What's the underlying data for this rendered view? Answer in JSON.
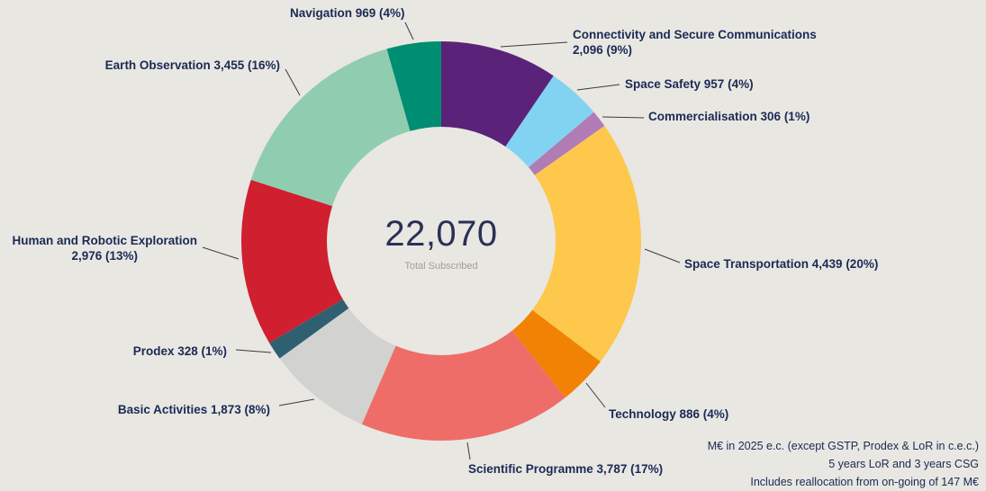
{
  "chart_data": {
    "type": "pie",
    "subtype": "donut",
    "title": "",
    "legend": "none",
    "center_value": "22,070",
    "center_label": "Total Subscribed",
    "total": 22070,
    "start_at_top_clockwise": true,
    "slices": [
      {
        "id": "connectivity",
        "name": "Connectivity and Secure Communications",
        "value": 2096,
        "pct": "9%",
        "color": "#5a2379",
        "label": "Connectivity and Secure Communications\n2,096 (9%)"
      },
      {
        "id": "space-safety",
        "name": "Space Safety",
        "value": 957,
        "pct": "4%",
        "color": "#82d3f2",
        "label": "Space Safety 957 (4%)"
      },
      {
        "id": "commercialisation",
        "name": "Commercialisation",
        "value": 306,
        "pct": "1%",
        "color": "#b17cb6",
        "label": "Commercialisation 306 (1%)"
      },
      {
        "id": "space-transportation",
        "name": "Space Transportation",
        "value": 4439,
        "pct": "20%",
        "color": "#fdc84b",
        "label": "Space Transportation 4,439 (20%)"
      },
      {
        "id": "technology",
        "name": "Technology",
        "value": 886,
        "pct": "4%",
        "color": "#f28204",
        "label": "Technology 886 (4%)"
      },
      {
        "id": "scientific-programme",
        "name": "Scientific Programme",
        "value": 3787,
        "pct": "17%",
        "color": "#ef6d68",
        "label": "Scientific Programme 3,787 (17%)"
      },
      {
        "id": "basic-activities",
        "name": "Basic Activities",
        "value": 1873,
        "pct": "8%",
        "color": "#d2d2d0",
        "label": "Basic Activities 1,873 (8%)"
      },
      {
        "id": "prodex",
        "name": "Prodex",
        "value": 328,
        "pct": "1%",
        "color": "#2f6071",
        "label": "Prodex 328 (1%)"
      },
      {
        "id": "human-robotic-exploration",
        "name": "Human and Robotic Exploration",
        "value": 2976,
        "pct": "13%",
        "color": "#d01f2f",
        "label": "Human and Robotic Exploration\n2,976 (13%)"
      },
      {
        "id": "earth-observation",
        "name": "Earth Observation",
        "value": 3455,
        "pct": "16%",
        "color": "#90cdb0",
        "label": "Earth Observation 3,455 (16%)"
      },
      {
        "id": "navigation",
        "name": "Navigation",
        "value": 969,
        "pct": "4%",
        "color": "#008e72",
        "label": "Navigation 969 (4%)"
      }
    ]
  },
  "footnotes": [
    "M€ in 2025 e.c. (except GSTP, Prodex & LoR in c.e.c.)",
    "5 years LoR and 3 years CSG",
    "Includes reallocation from on-going of 147 M€"
  ],
  "colors": {
    "background": "#e8e7e2",
    "label_text": "#1b2a55",
    "center_value_text": "#2a3156",
    "center_label_text": "#9e9e9e",
    "leader_line": "#3a3a3a"
  }
}
